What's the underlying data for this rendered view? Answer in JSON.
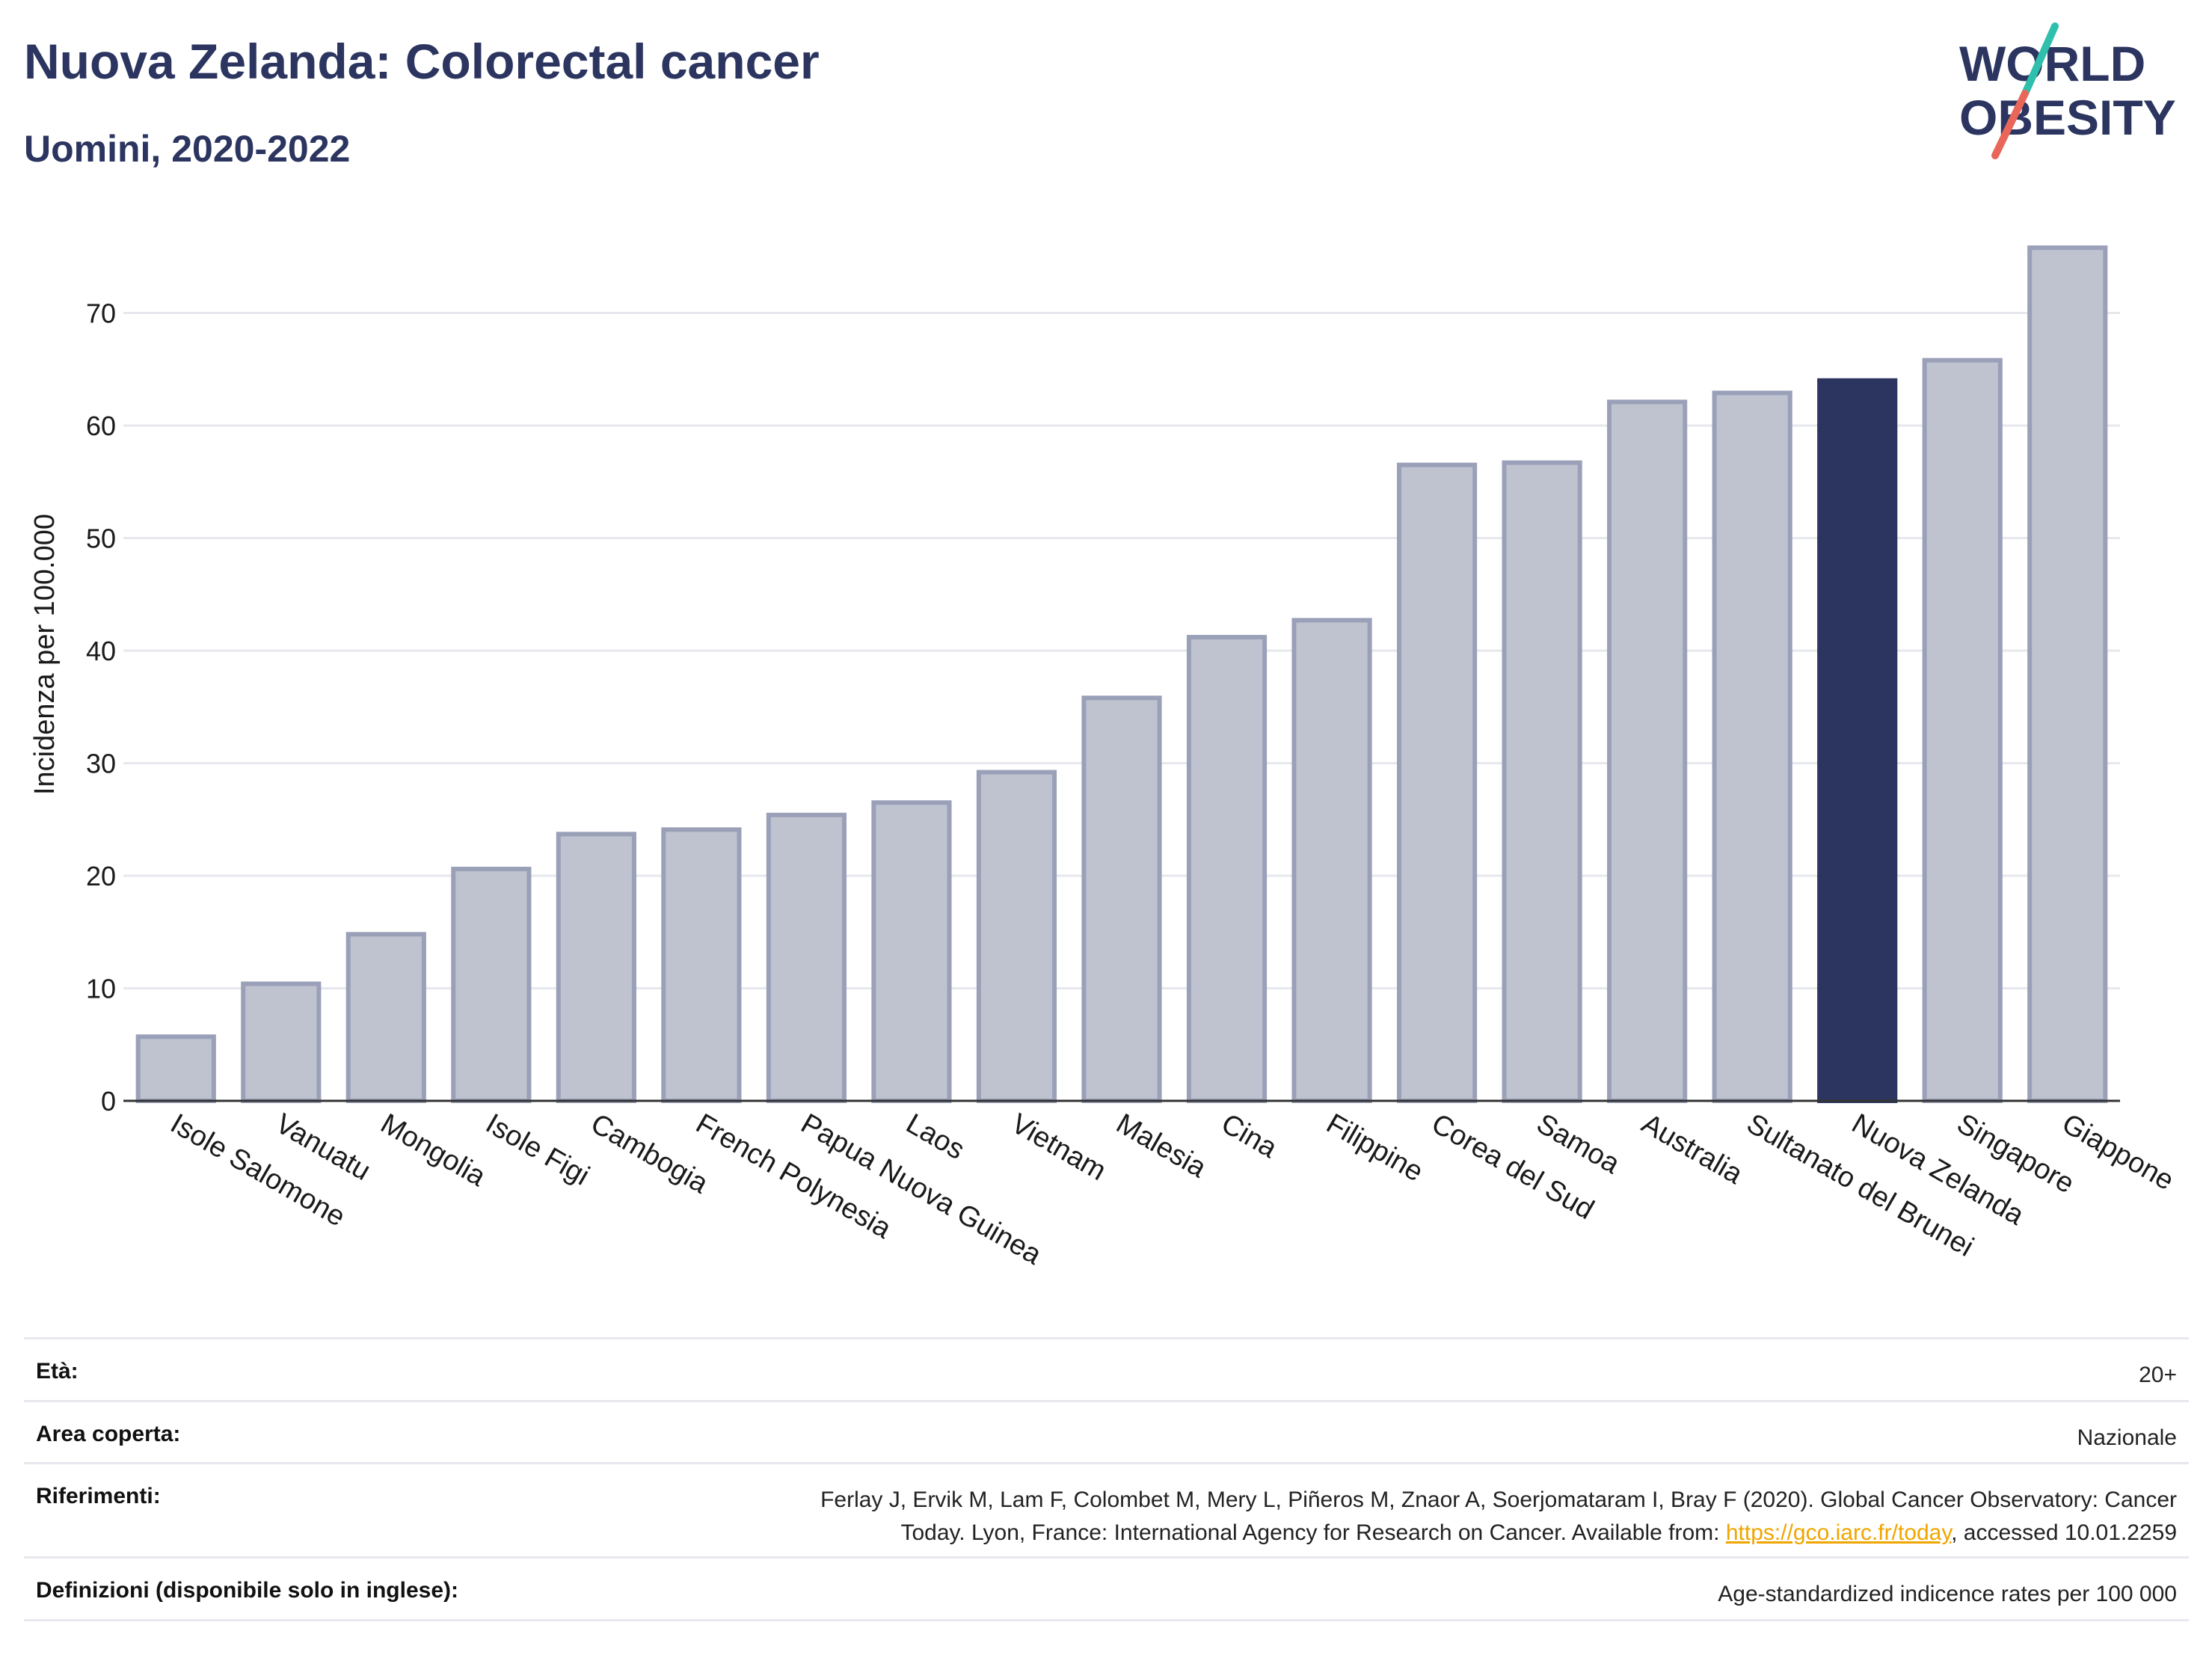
{
  "header": {
    "title": "Nuova Zelanda: Colorectal cancer",
    "subtitle": "Uomini, 2020-2022"
  },
  "logo": {
    "line1": "WORLD",
    "line2": "OBESITY"
  },
  "colors": {
    "bar": "#bfc3d0",
    "bar_border": "#9aa0b8",
    "highlight": "#2b3560",
    "grid": "#e6e8ee",
    "axis": "#333333"
  },
  "chart_data": {
    "type": "bar",
    "ylabel": "Incidenza per 100.000",
    "ylim": [
      0,
      78
    ],
    "yticks": [
      0,
      10,
      20,
      30,
      40,
      50,
      60,
      70
    ],
    "grid": true,
    "categories": [
      "Isole Salomone",
      "Vanuatu",
      "Mongolia",
      "Isole Figi",
      "Cambogia",
      "French Polynesia",
      "Papua Nuova Guinea",
      "Laos",
      "Vietnam",
      "Malesia",
      "Cina",
      "Filippine",
      "Corea del Sud",
      "Samoa",
      "Australia",
      "Sultanato del Brunei",
      "Nuova Zelanda",
      "Singapore",
      "Giappone"
    ],
    "values": [
      5.7,
      10.4,
      14.8,
      20.6,
      23.7,
      24.1,
      25.4,
      26.5,
      29.2,
      35.8,
      41.2,
      42.7,
      56.5,
      56.7,
      62.1,
      62.9,
      64.0,
      65.8,
      75.8
    ],
    "highlight": "Nuova Zelanda"
  },
  "meta": {
    "age_label": "Età:",
    "age_value": "20+",
    "area_label": "Area coperta:",
    "area_value": "Nazionale",
    "refs_label": "Riferimenti:",
    "refs_text1": "Ferlay J, Ervik M, Lam F, Colombet M, Mery L, Piñeros M, Znaor A, Soerjomataram I, Bray F (2020). Global Cancer Observatory: Cancer",
    "refs_text2": "Today. Lyon, France: International Agency for Research on Cancer. Available from: ",
    "refs_link": "https://gco.iarc.fr/today",
    "refs_text3": ", accessed 10.01.2259",
    "def_label": "Definizioni (disponibile solo in inglese):",
    "def_value": "Age-standardized indicence rates per 100 000"
  }
}
